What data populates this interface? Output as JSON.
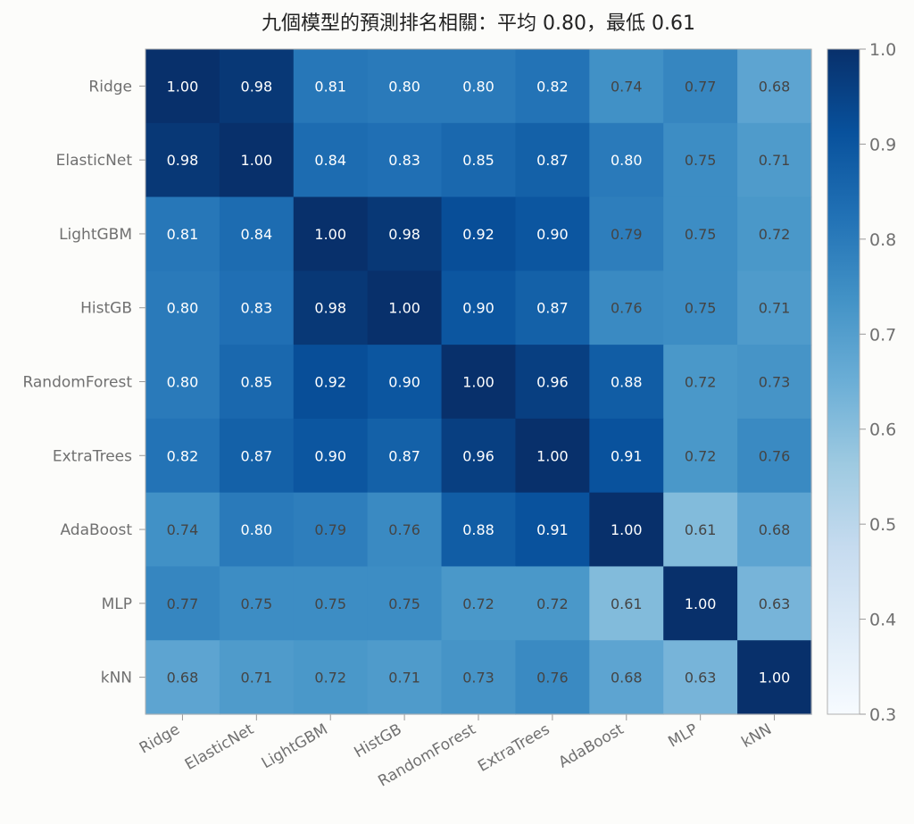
{
  "chart_data": {
    "type": "heatmap",
    "title": "九個模型的預測排名相關：平均 0.80，最低 0.61",
    "labels": [
      "Ridge",
      "ElasticNet",
      "LightGBM",
      "HistGB",
      "RandomForest",
      "ExtraTrees",
      "AdaBoost",
      "MLP",
      "kNN"
    ],
    "values": [
      [
        1.0,
        0.98,
        0.81,
        0.8,
        0.8,
        0.82,
        0.74,
        0.77,
        0.68
      ],
      [
        0.98,
        1.0,
        0.84,
        0.83,
        0.85,
        0.87,
        0.8,
        0.75,
        0.71
      ],
      [
        0.81,
        0.84,
        1.0,
        0.98,
        0.92,
        0.9,
        0.79,
        0.75,
        0.72
      ],
      [
        0.8,
        0.83,
        0.98,
        1.0,
        0.9,
        0.87,
        0.76,
        0.75,
        0.71
      ],
      [
        0.8,
        0.85,
        0.92,
        0.9,
        1.0,
        0.96,
        0.88,
        0.72,
        0.73
      ],
      [
        0.82,
        0.87,
        0.9,
        0.87,
        0.96,
        1.0,
        0.91,
        0.72,
        0.76
      ],
      [
        0.74,
        0.8,
        0.79,
        0.76,
        0.88,
        0.91,
        1.0,
        0.61,
        0.68
      ],
      [
        0.77,
        0.75,
        0.75,
        0.75,
        0.72,
        0.72,
        0.61,
        1.0,
        0.63
      ],
      [
        0.68,
        0.71,
        0.72,
        0.71,
        0.73,
        0.76,
        0.68,
        0.63,
        1.0
      ]
    ],
    "colorbar": {
      "range": [
        0.3,
        1.0
      ],
      "ticks": [
        "0.3",
        "0.4",
        "0.5",
        "0.6",
        "0.7",
        "0.8",
        "0.9",
        "1.0"
      ]
    },
    "colormap": "Blues"
  }
}
